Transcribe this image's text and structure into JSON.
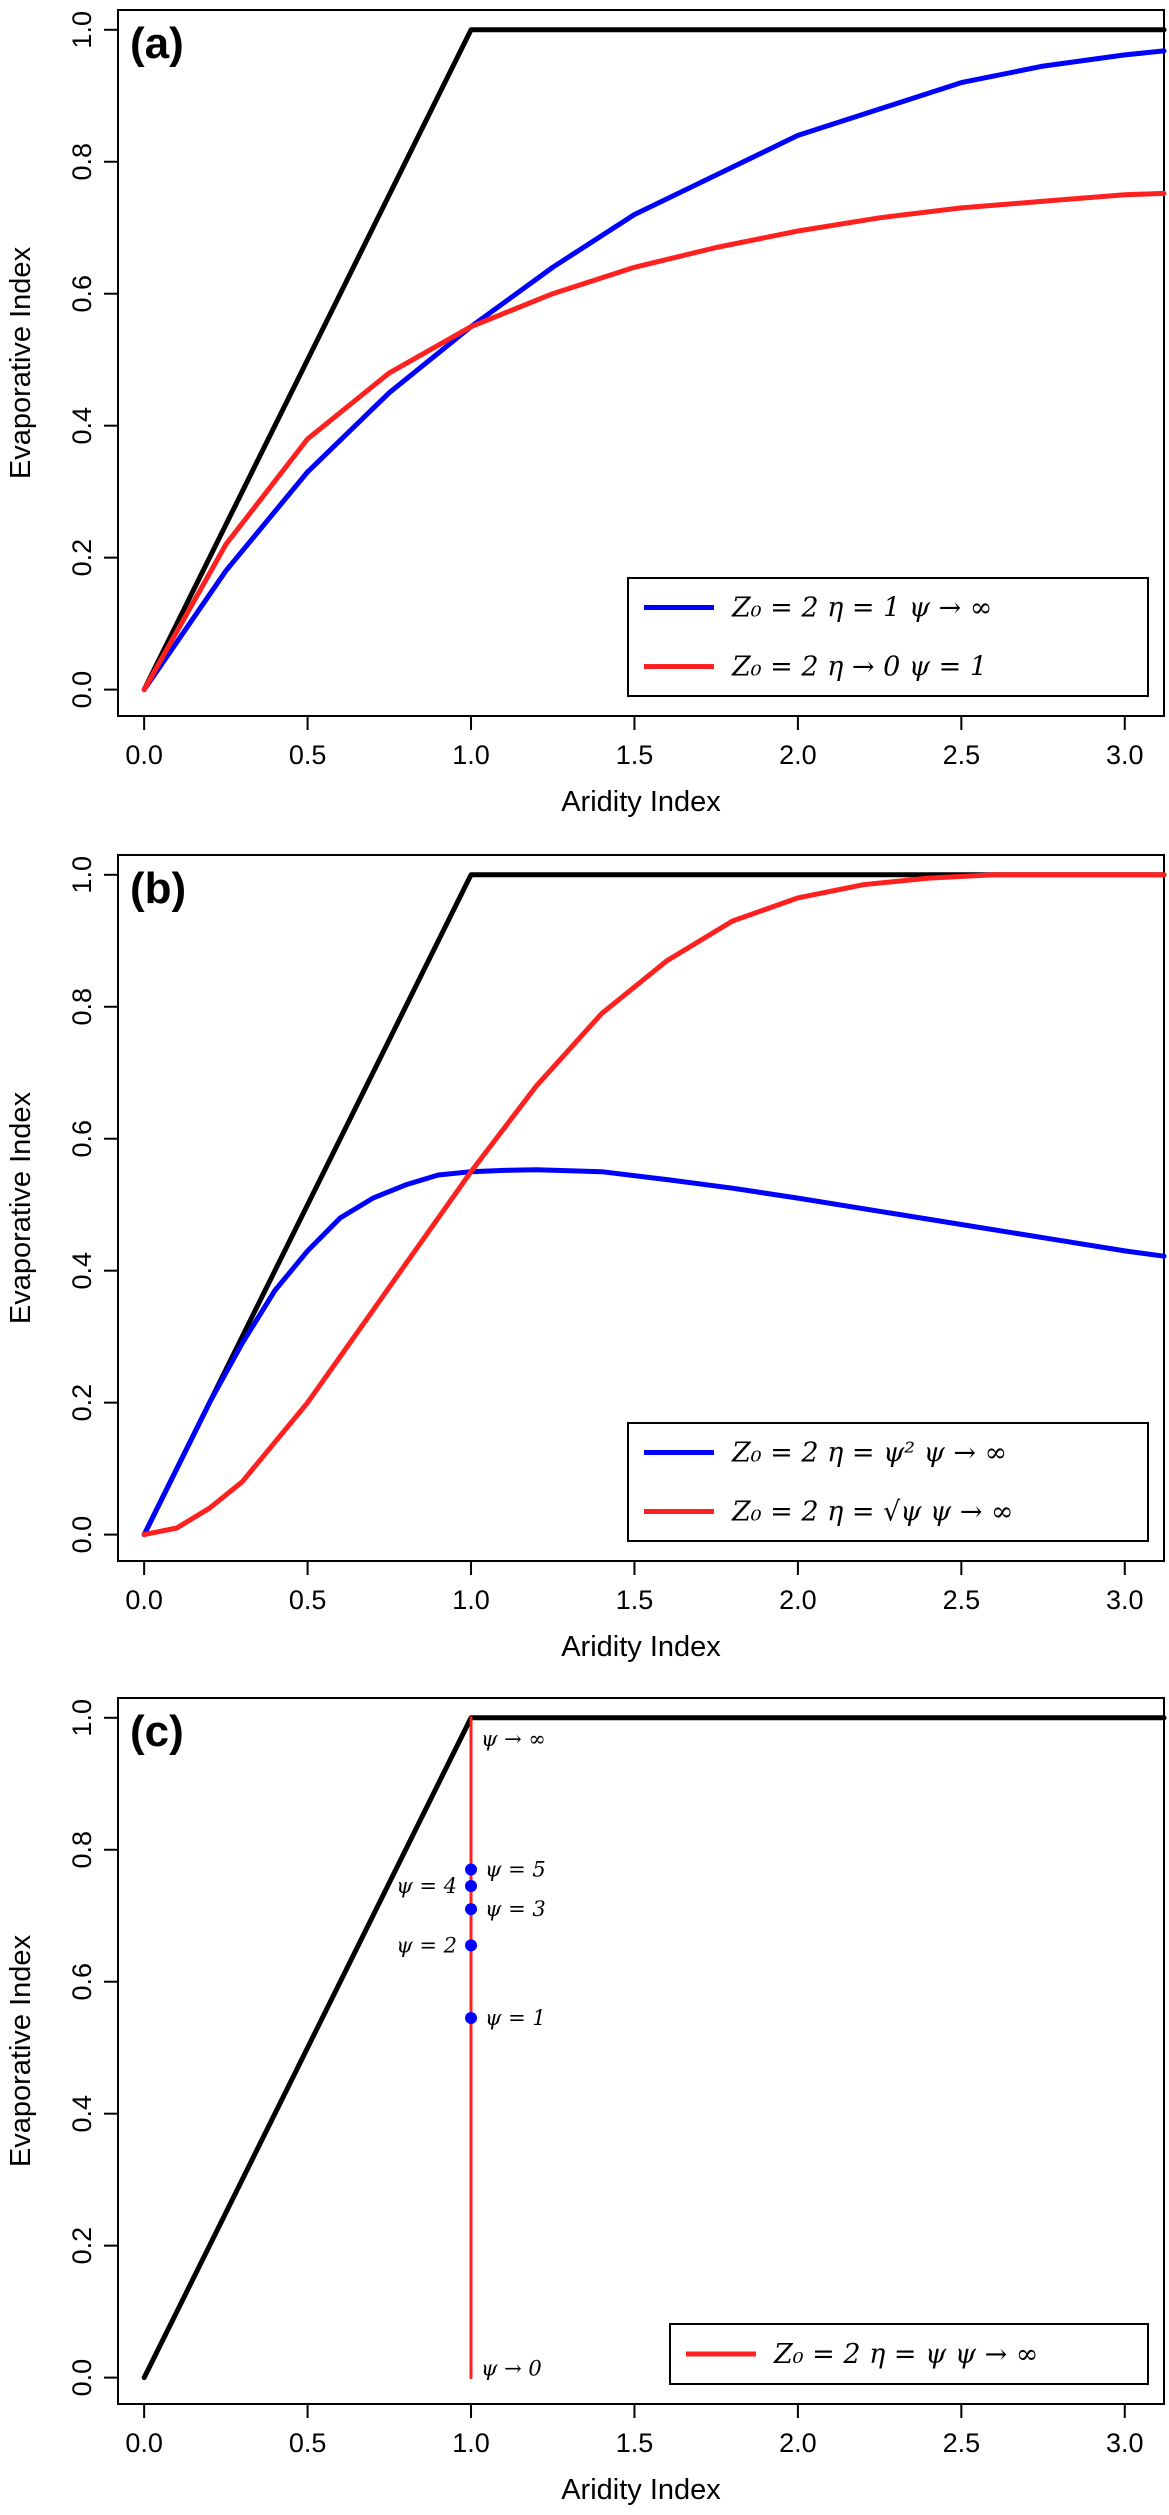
{
  "chart_data": [
    {
      "type": "line",
      "panel_label": "(a)",
      "xlabel": "Aridity Index",
      "ylabel": "Evaporative Index",
      "xlim": [
        -0.08,
        3.12
      ],
      "ylim": [
        -0.04,
        1.03
      ],
      "xticks": [
        "0.0",
        "0.5",
        "1.0",
        "1.5",
        "2.0",
        "2.5",
        "3.0"
      ],
      "yticks": [
        "0.0",
        "0.2",
        "0.4",
        "0.6",
        "0.8",
        "1.0"
      ],
      "grid": false,
      "legend_position": "bottom-right",
      "series": [
        {
          "color": "#000000",
          "x": [
            0,
            1,
            3.12
          ],
          "y": [
            0,
            1,
            1
          ]
        },
        {
          "name": "Z₀ = 2    η = 1    ψ → ∞",
          "color": "#0000ff",
          "x": [
            0,
            0.25,
            0.5,
            0.75,
            1.0,
            1.25,
            1.5,
            1.75,
            2.0,
            2.25,
            2.5,
            2.75,
            3.0,
            3.12
          ],
          "y": [
            0,
            0.18,
            0.33,
            0.45,
            0.55,
            0.64,
            0.72,
            0.78,
            0.84,
            0.88,
            0.92,
            0.945,
            0.962,
            0.968
          ]
        },
        {
          "name": "Z₀ = 2    η → 0    ψ = 1",
          "color": "#ff2020",
          "x": [
            0,
            0.25,
            0.5,
            0.75,
            1.0,
            1.25,
            1.5,
            1.75,
            2.0,
            2.25,
            2.5,
            2.75,
            3.0,
            3.12
          ],
          "y": [
            0,
            0.22,
            0.38,
            0.48,
            0.55,
            0.6,
            0.64,
            0.67,
            0.695,
            0.715,
            0.73,
            0.74,
            0.75,
            0.752
          ]
        }
      ]
    },
    {
      "type": "line",
      "panel_label": "(b)",
      "xlabel": "Aridity Index",
      "ylabel": "Evaporative Index",
      "xlim": [
        -0.08,
        3.12
      ],
      "ylim": [
        -0.04,
        1.03
      ],
      "xticks": [
        "0.0",
        "0.5",
        "1.0",
        "1.5",
        "2.0",
        "2.5",
        "3.0"
      ],
      "yticks": [
        "0.0",
        "0.2",
        "0.4",
        "0.6",
        "0.8",
        "1.0"
      ],
      "grid": false,
      "legend_position": "bottom-right",
      "series": [
        {
          "color": "#000000",
          "x": [
            0,
            1,
            3.12
          ],
          "y": [
            0,
            1,
            1
          ]
        },
        {
          "name": "Z₀ = 2    η = ψ²    ψ → ∞",
          "color": "#0000ff",
          "x": [
            0,
            0.1,
            0.2,
            0.3,
            0.4,
            0.5,
            0.6,
            0.7,
            0.8,
            0.9,
            1.0,
            1.1,
            1.2,
            1.4,
            1.6,
            1.8,
            2.0,
            2.25,
            2.5,
            2.75,
            3.0,
            3.12
          ],
          "y": [
            0,
            0.1,
            0.2,
            0.29,
            0.37,
            0.43,
            0.48,
            0.51,
            0.53,
            0.545,
            0.55,
            0.552,
            0.553,
            0.55,
            0.538,
            0.525,
            0.51,
            0.49,
            0.47,
            0.45,
            0.43,
            0.422
          ]
        },
        {
          "name": "Z₀ = 2    η = √ψ    ψ → ∞",
          "color": "#ff2020",
          "x": [
            0,
            0.1,
            0.2,
            0.3,
            0.4,
            0.5,
            0.6,
            0.7,
            0.8,
            0.9,
            1.0,
            1.2,
            1.4,
            1.6,
            1.8,
            2.0,
            2.2,
            2.4,
            2.6,
            2.8,
            3.0,
            3.12
          ],
          "y": [
            0,
            0.01,
            0.04,
            0.08,
            0.14,
            0.2,
            0.27,
            0.34,
            0.41,
            0.48,
            0.55,
            0.68,
            0.79,
            0.87,
            0.93,
            0.965,
            0.985,
            0.995,
            1.0,
            1.0,
            1.0,
            1.0
          ]
        }
      ]
    },
    {
      "type": "line",
      "panel_label": "(c)",
      "xlabel": "Aridity Index",
      "ylabel": "Evaporative Index",
      "xlim": [
        -0.08,
        3.12
      ],
      "ylim": [
        -0.04,
        1.03
      ],
      "xticks": [
        "0.0",
        "0.5",
        "1.0",
        "1.5",
        "2.0",
        "2.5",
        "3.0"
      ],
      "yticks": [
        "0.0",
        "0.2",
        "0.4",
        "0.6",
        "0.8",
        "1.0"
      ],
      "grid": false,
      "legend_position": "bottom-right",
      "series": [
        {
          "color": "#000000",
          "x": [
            0,
            1,
            3.12
          ],
          "y": [
            0,
            1,
            1
          ]
        },
        {
          "name": "Z₀ = 2    η = ψ    ψ → ∞",
          "color": "#ff2020",
          "x": [
            1,
            1
          ],
          "y": [
            0,
            1
          ]
        }
      ],
      "points": [
        {
          "x": 1,
          "y": 0.545,
          "label": "ψ = 1",
          "side": "right"
        },
        {
          "x": 1,
          "y": 0.655,
          "label": "ψ = 2",
          "side": "left"
        },
        {
          "x": 1,
          "y": 0.71,
          "label": "ψ = 3",
          "side": "right"
        },
        {
          "x": 1,
          "y": 0.745,
          "label": "ψ = 4",
          "side": "left"
        },
        {
          "x": 1,
          "y": 0.77,
          "label": "ψ = 5",
          "side": "right"
        }
      ],
      "point_color": "#0000ff",
      "annotations": [
        {
          "x": 1,
          "y": 0.0,
          "text": "ψ → 0"
        },
        {
          "x": 1,
          "y": 1.0,
          "text": "ψ → ∞"
        }
      ]
    }
  ]
}
